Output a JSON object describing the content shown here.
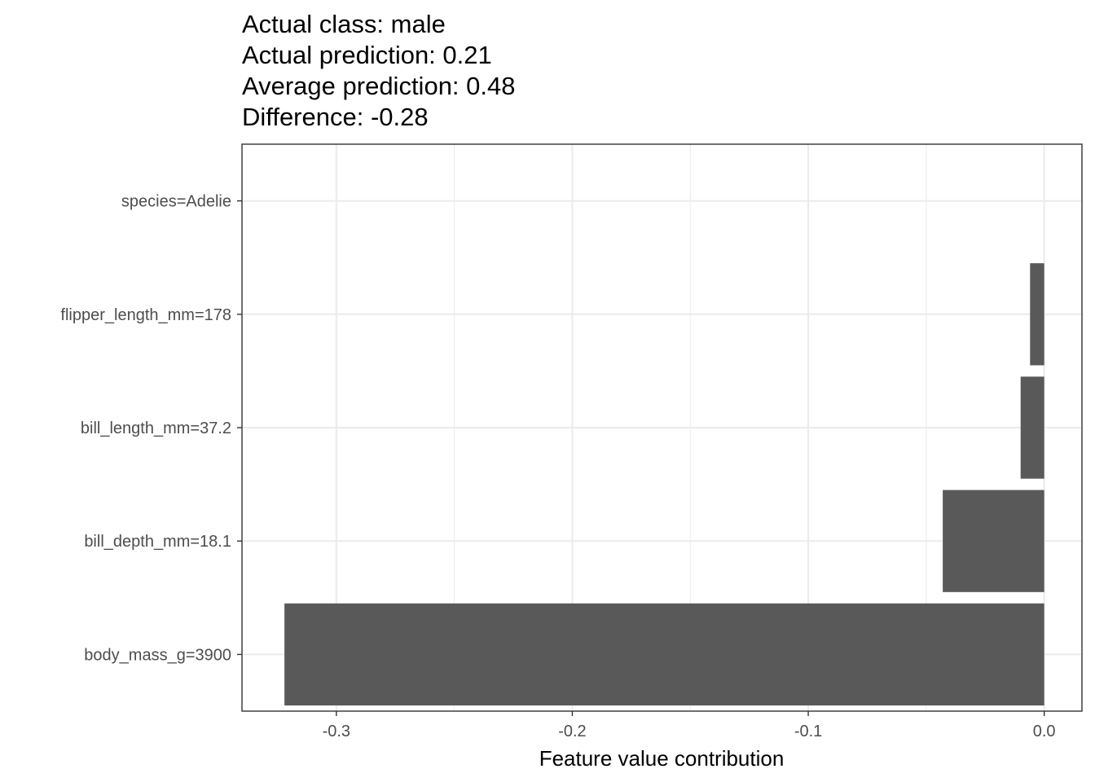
{
  "chart_data": {
    "type": "bar",
    "orientation": "horizontal",
    "title_lines": [
      "Actual class: male",
      "Actual prediction: 0.21",
      "Average prediction: 0.48",
      "Difference: -0.28"
    ],
    "xlabel": "Feature value contribution",
    "ylabel": "",
    "categories": [
      "species=Adelie",
      "flipper_length_mm=178",
      "bill_length_mm=37.2",
      "bill_depth_mm=18.1",
      "body_mass_g=3900"
    ],
    "values": [
      0.0,
      -0.006,
      -0.01,
      -0.043,
      -0.322
    ],
    "xlim": [
      -0.34,
      0.016
    ],
    "xticks": [
      -0.3,
      -0.2,
      -0.1,
      0.0
    ],
    "xtick_labels": [
      "-0.3",
      "-0.2",
      "-0.1",
      "0.0"
    ],
    "grid": true,
    "bar_color": "#595959",
    "grid_color": "#ebebeb",
    "panel_border_color": "#333333"
  }
}
